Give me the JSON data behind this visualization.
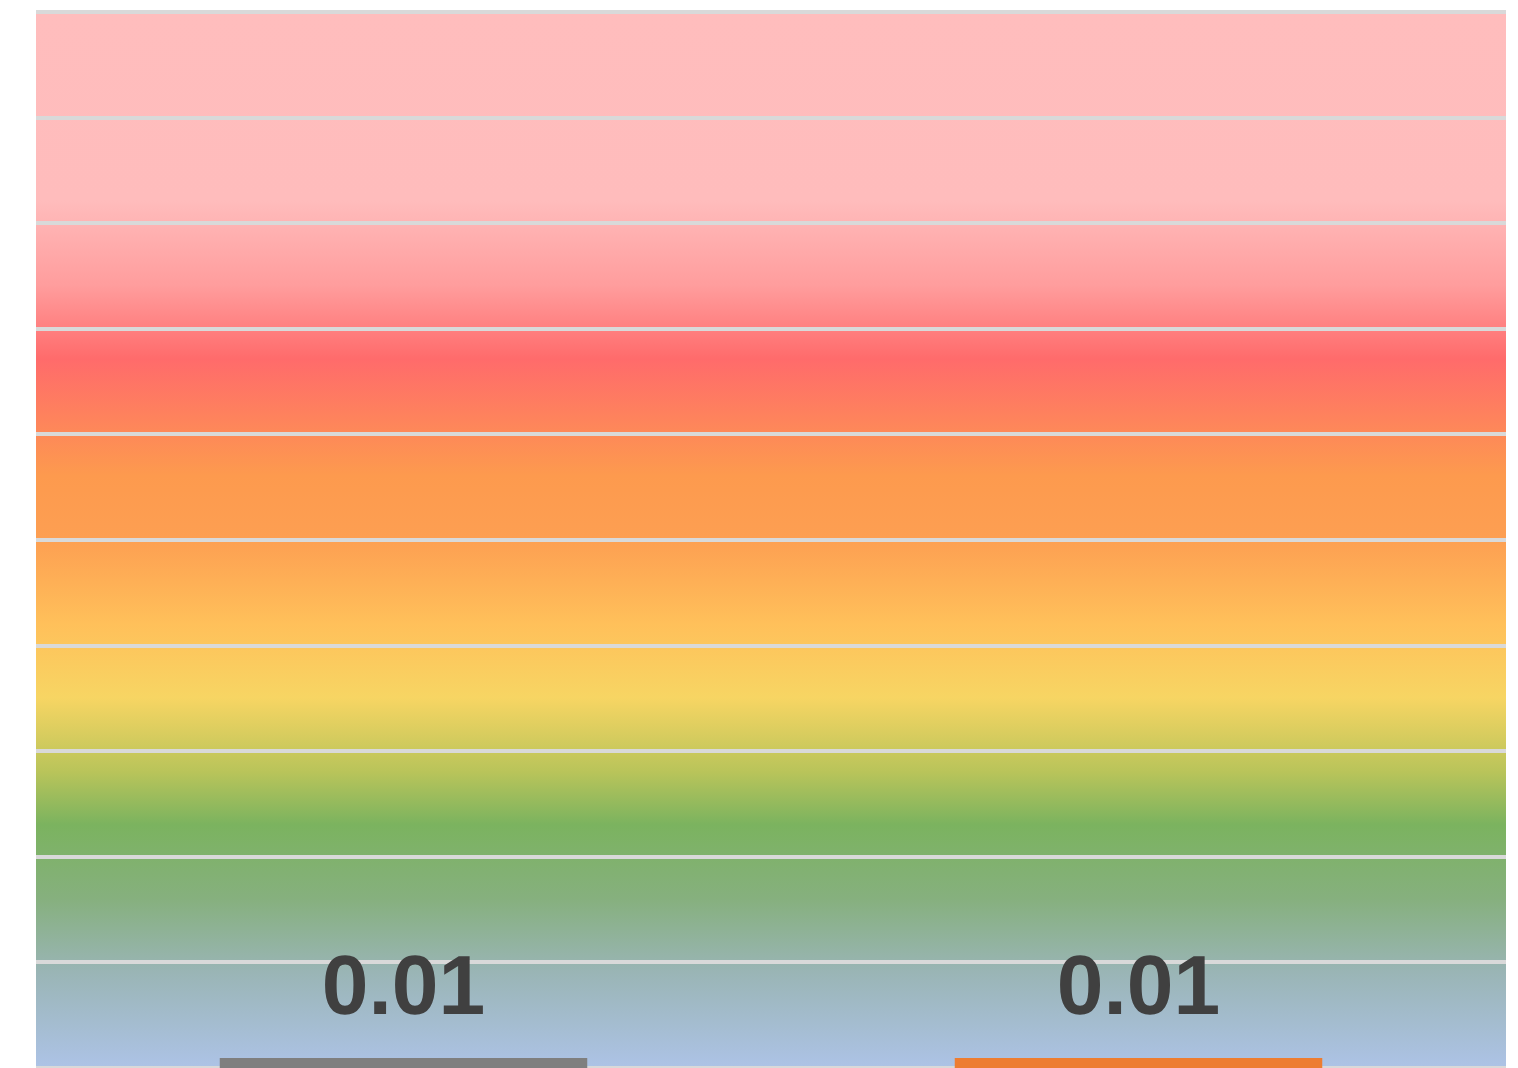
{
  "chart_data": {
    "type": "bar",
    "categories": [
      null,
      null
    ],
    "values": [
      0.01,
      0.01
    ],
    "colors": [
      "#7f7f7f",
      "#ed7d31"
    ],
    "data_labels": true,
    "tick_labels": false,
    "legend": false
  }
}
